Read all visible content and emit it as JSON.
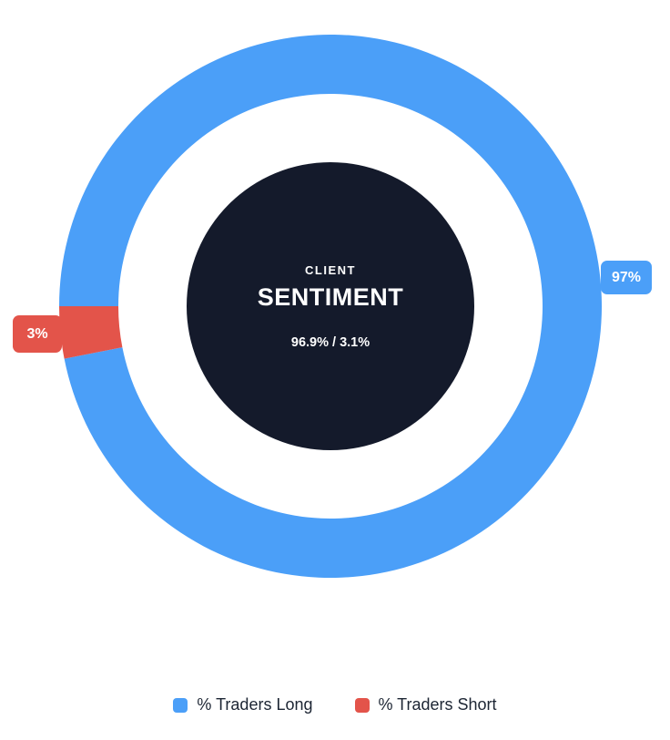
{
  "chart_data": {
    "type": "pie",
    "variant": "donut",
    "title": "CLIENT SENTIMENT",
    "legend_position": "bottom",
    "slices": [
      {
        "label": "% Traders Long",
        "value": 96.9,
        "color": "#4b9ff8",
        "callout": "97%"
      },
      {
        "label": "% Traders Short",
        "value": 3.1,
        "color": "#e3544a",
        "callout": "3%"
      }
    ],
    "center": {
      "kicker": "CLIENT",
      "title": "SENTIMENT",
      "values": "96.9% / 3.1%",
      "bg_color": "#141a2b",
      "text_color": "#ffffff"
    }
  }
}
